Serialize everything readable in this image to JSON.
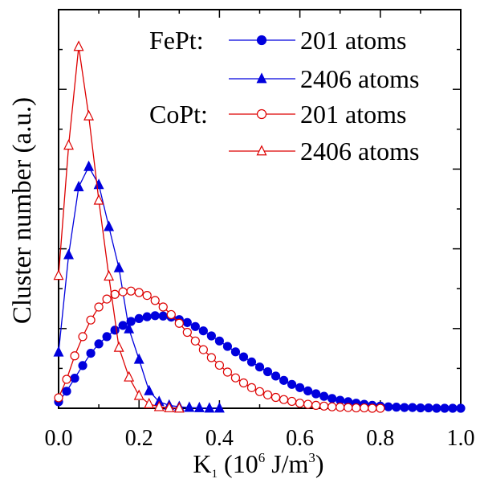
{
  "chart_data": {
    "type": "line",
    "title": "",
    "xlabel": {
      "main": "K",
      "sub": "1",
      "pre": " (10",
      "sup1": "6",
      "mid": " J/m",
      "sup2": "3",
      "post": ")"
    },
    "ylabel": "Cluster number (a.u.)",
    "xlim": [
      0,
      1.0
    ],
    "ylim": [
      0,
      1.0
    ],
    "xticks": [
      0.0,
      0.2,
      0.4,
      0.6,
      0.8,
      1.0
    ],
    "xtick_labels": [
      "0.0",
      "0.2",
      "0.4",
      "0.6",
      "0.8",
      "1.0"
    ],
    "grid": false,
    "legend": {
      "placement": "top-right",
      "groups": [
        {
          "label": "FePt:",
          "entries": [
            "201 atoms",
            "2406 atoms"
          ]
        },
        {
          "label": "CoPt:",
          "entries": [
            "201 atoms",
            "2406 atoms"
          ]
        }
      ]
    },
    "series": [
      {
        "name": "201 atoms",
        "group": "FePt",
        "color": "#0000dd",
        "marker": "circle-filled",
        "x": [
          0.0,
          0.02,
          0.04,
          0.06,
          0.08,
          0.1,
          0.12,
          0.14,
          0.16,
          0.18,
          0.2,
          0.22,
          0.24,
          0.26,
          0.28,
          0.3,
          0.32,
          0.34,
          0.36,
          0.38,
          0.4,
          0.42,
          0.44,
          0.46,
          0.48,
          0.5,
          0.52,
          0.54,
          0.56,
          0.58,
          0.6,
          0.62,
          0.64,
          0.66,
          0.68,
          0.7,
          0.72,
          0.74,
          0.76,
          0.78,
          0.8,
          0.82,
          0.84,
          0.86,
          0.88,
          0.9,
          0.92,
          0.94,
          0.96,
          0.98,
          1.0
        ],
        "y": [
          0.018,
          0.047,
          0.083,
          0.118,
          0.152,
          0.178,
          0.198,
          0.216,
          0.229,
          0.24,
          0.248,
          0.253,
          0.256,
          0.255,
          0.252,
          0.245,
          0.237,
          0.226,
          0.214,
          0.2,
          0.186,
          0.171,
          0.156,
          0.142,
          0.128,
          0.114,
          0.101,
          0.089,
          0.077,
          0.066,
          0.057,
          0.048,
          0.04,
          0.033,
          0.027,
          0.022,
          0.018,
          0.014,
          0.011,
          0.008,
          0.006,
          0.004,
          0.003,
          0.002,
          0.002,
          0.001,
          0.001,
          0.0,
          0.0,
          0.0,
          0.0
        ]
      },
      {
        "name": "2406 atoms",
        "group": "FePt",
        "color": "#0000dd",
        "marker": "triangle-filled",
        "x": [
          0.0,
          0.025,
          0.05,
          0.075,
          0.1,
          0.125,
          0.15,
          0.175,
          0.2,
          0.225,
          0.25,
          0.275,
          0.3,
          0.325,
          0.35,
          0.375,
          0.4
        ],
        "y": [
          0.155,
          0.424,
          0.612,
          0.668,
          0.618,
          0.502,
          0.388,
          0.219,
          0.135,
          0.048,
          0.018,
          0.008,
          0.004,
          0.002,
          0.001,
          0.0,
          0.0
        ]
      },
      {
        "name": "201 atoms",
        "group": "CoPt",
        "color": "#dd0000",
        "marker": "circle-open",
        "x": [
          0.0,
          0.02,
          0.04,
          0.06,
          0.08,
          0.1,
          0.12,
          0.14,
          0.16,
          0.18,
          0.2,
          0.22,
          0.24,
          0.26,
          0.28,
          0.3,
          0.32,
          0.34,
          0.36,
          0.38,
          0.4,
          0.42,
          0.44,
          0.46,
          0.48,
          0.5,
          0.52,
          0.54,
          0.56,
          0.58,
          0.6,
          0.62,
          0.64,
          0.66,
          0.68,
          0.7,
          0.72,
          0.74,
          0.76,
          0.78,
          0.8
        ],
        "y": [
          0.029,
          0.08,
          0.145,
          0.198,
          0.244,
          0.28,
          0.302,
          0.315,
          0.322,
          0.324,
          0.32,
          0.312,
          0.298,
          0.28,
          0.259,
          0.235,
          0.21,
          0.186,
          0.162,
          0.14,
          0.119,
          0.1,
          0.084,
          0.07,
          0.057,
          0.046,
          0.037,
          0.03,
          0.024,
          0.019,
          0.014,
          0.011,
          0.008,
          0.006,
          0.004,
          0.003,
          0.002,
          0.001,
          0.001,
          0.0,
          0.0
        ]
      },
      {
        "name": "2406 atoms",
        "group": "CoPt",
        "color": "#dd0000",
        "marker": "triangle-open",
        "x": [
          0.0,
          0.025,
          0.05,
          0.075,
          0.1,
          0.125,
          0.15,
          0.175,
          0.2,
          0.225,
          0.25,
          0.275,
          0.3
        ],
        "y": [
          0.367,
          0.727,
          1.0,
          0.808,
          0.575,
          0.365,
          0.168,
          0.086,
          0.035,
          0.012,
          0.004,
          0.001,
          0.0
        ]
      }
    ]
  }
}
